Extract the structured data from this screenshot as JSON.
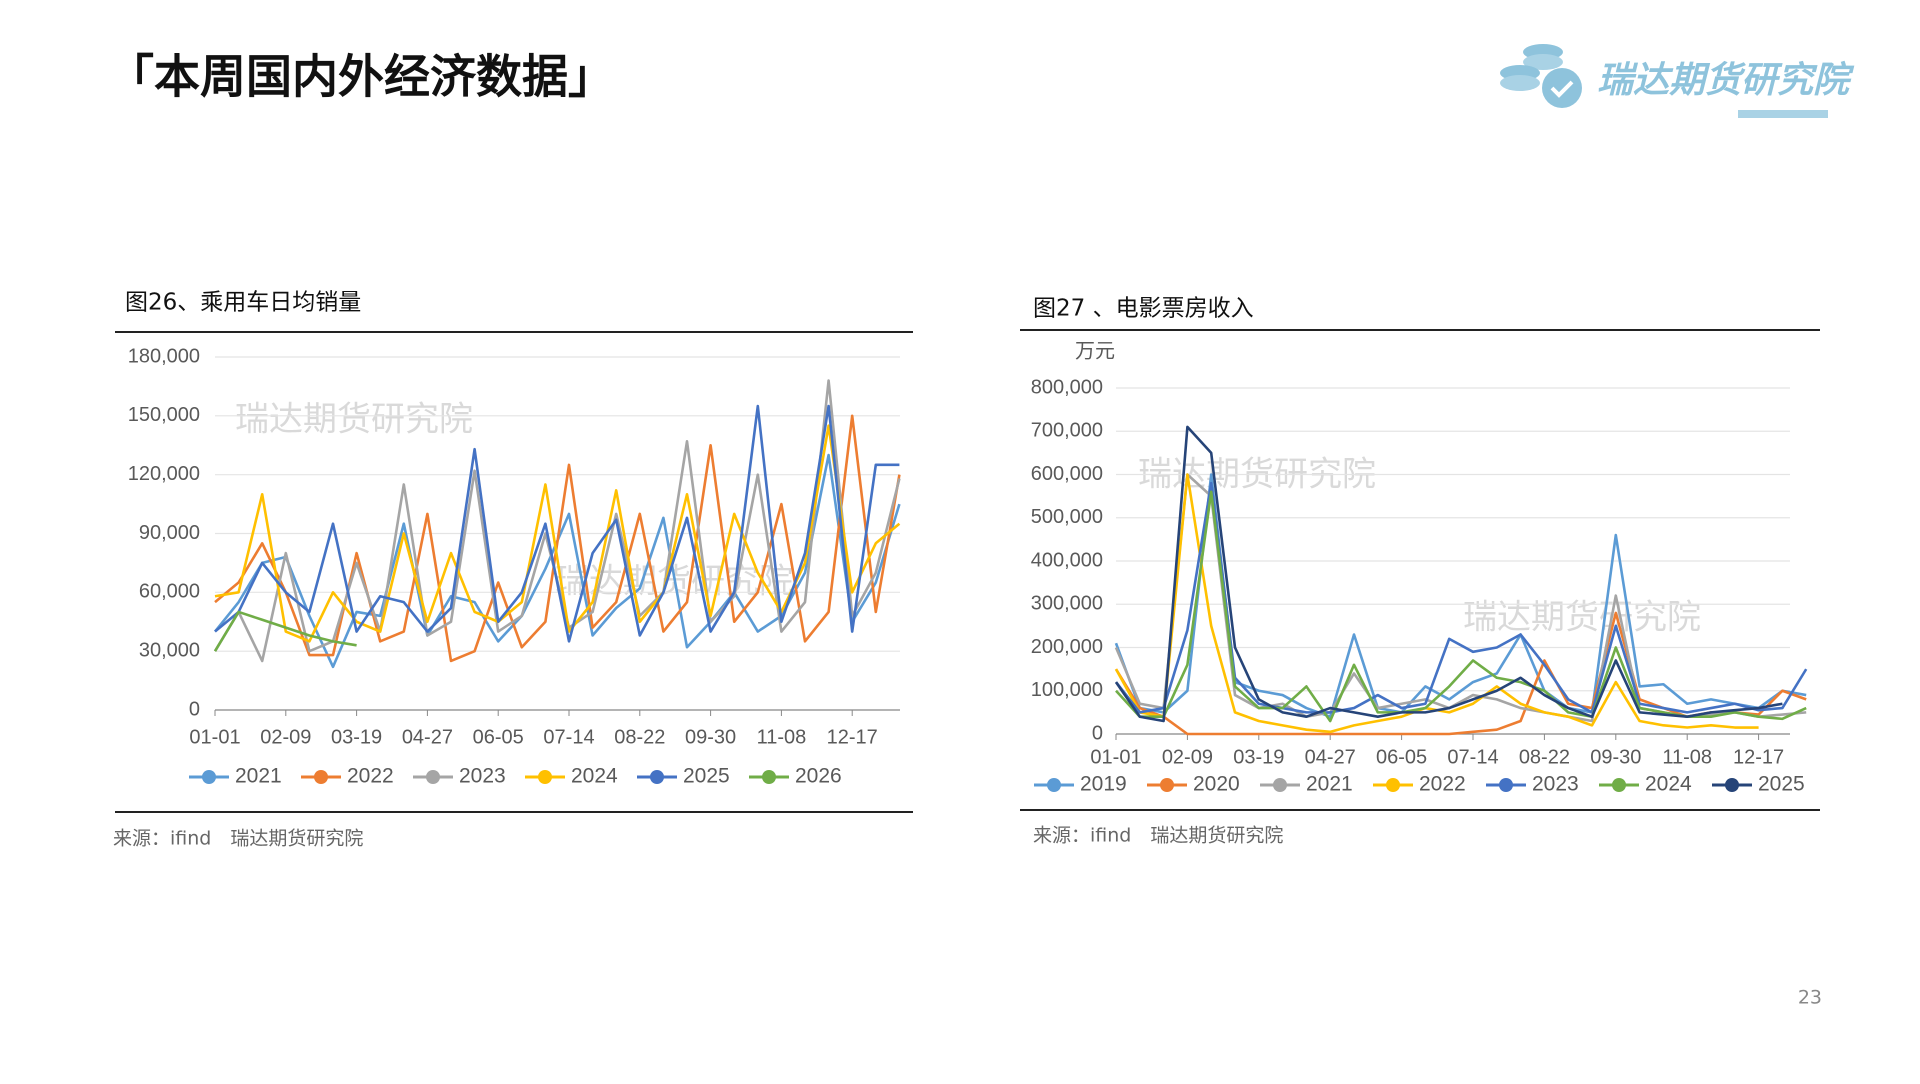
{
  "header": {
    "title": "「本周国内外经济数据」",
    "logo": "瑞达期货研究院"
  },
  "chart_data": [
    {
      "type": "line",
      "title": "图26、乘用车日均销量",
      "watermarks": [
        "瑞达期货研究院",
        "瑞达期货研究院"
      ],
      "categories": [
        "01-01",
        null,
        null,
        "02-09",
        null,
        null,
        "03-19",
        null,
        null,
        "04-27",
        null,
        null,
        "06-05",
        null,
        null,
        "07-14",
        null,
        null,
        "08-22",
        null,
        null,
        "09-30",
        null,
        null,
        "11-08",
        null,
        null,
        "12-17",
        null,
        null
      ],
      "ylim": [
        0,
        180000
      ],
      "yticks": [
        0,
        {
          "value": 30000,
          "label": "30,000"
        },
        {
          "value": 60000,
          "label": "60,000"
        },
        {
          "value": 90000,
          "label": "90,000"
        },
        {
          "value": 120000,
          "label": "120,000"
        },
        {
          "value": 150000,
          "label": "150,000"
        },
        {
          "value": 180000,
          "label": "180,000"
        }
      ],
      "grid": true,
      "legend": "bottom",
      "series": [
        {
          "name": "2021",
          "color": "#5b9bd5",
          "values": [
            40000,
            55000,
            75000,
            78000,
            48000,
            22000,
            50000,
            48000,
            95000,
            38000,
            58000,
            55000,
            35000,
            48000,
            72000,
            100000,
            38000,
            52000,
            62000,
            98000,
            32000,
            45000,
            60000,
            40000,
            48000,
            70000,
            130000,
            45000,
            65000,
            105000
          ]
        },
        {
          "name": "2022",
          "color": "#ed7d31",
          "values": [
            55000,
            65000,
            85000,
            60000,
            28000,
            28000,
            80000,
            35000,
            40000,
            100000,
            25000,
            30000,
            65000,
            32000,
            45000,
            125000,
            42000,
            55000,
            100000,
            40000,
            55000,
            135000,
            45000,
            60000,
            105000,
            35000,
            50000,
            150000,
            50000,
            120000
          ]
        },
        {
          "name": "2023",
          "color": "#a5a5a5",
          "values": [
            30000,
            50000,
            25000,
            80000,
            30000,
            35000,
            75000,
            40000,
            115000,
            38000,
            45000,
            122000,
            40000,
            48000,
            90000,
            42000,
            50000,
            100000,
            48000,
            60000,
            137000,
            45000,
            58000,
            120000,
            40000,
            55000,
            168000,
            48000,
            70000,
            118000
          ]
        },
        {
          "name": "2024",
          "color": "#ffc000",
          "values": [
            58000,
            60000,
            110000,
            40000,
            35000,
            60000,
            45000,
            40000,
            90000,
            45000,
            80000,
            50000,
            45000,
            55000,
            115000,
            40000,
            55000,
            112000,
            45000,
            60000,
            110000,
            48000,
            100000,
            70000,
            50000,
            75000,
            145000,
            60000,
            85000,
            95000
          ]
        },
        {
          "name": "2025",
          "color": "#4472c4",
          "values": [
            40000,
            50000,
            75000,
            60000,
            50000,
            95000,
            40000,
            58000,
            55000,
            40000,
            52000,
            133000,
            45000,
            60000,
            95000,
            35000,
            80000,
            97000,
            38000,
            60000,
            98000,
            40000,
            60000,
            155000,
            45000,
            80000,
            155000,
            40000,
            125000,
            125000
          ]
        },
        {
          "name": "2026",
          "color": "#70ad47",
          "values": [
            30000,
            50000,
            46000,
            42000,
            38000,
            35000,
            33000,
            null,
            null,
            null,
            null,
            null,
            null,
            null,
            null,
            null,
            null,
            null,
            null,
            null,
            null,
            null,
            null,
            null,
            null,
            null,
            null,
            null,
            null,
            null
          ]
        }
      ]
    },
    {
      "type": "line",
      "title": "图27 、电影票房收入",
      "y_label": "万元",
      "watermarks": [
        "瑞达期货研究院",
        "瑞达期货研究院"
      ],
      "categories": [
        "01-01",
        null,
        null,
        "02-09",
        null,
        null,
        "03-19",
        null,
        null,
        "04-27",
        null,
        null,
        "06-05",
        null,
        null,
        "07-14",
        null,
        null,
        "08-22",
        null,
        null,
        "09-30",
        null,
        null,
        "11-08",
        null,
        null,
        "12-17",
        null,
        null
      ],
      "ylim": [
        0,
        800000
      ],
      "yticks": [
        0,
        {
          "value": 100000,
          "label": "100,000"
        },
        {
          "value": 200000,
          "label": "200,000"
        },
        {
          "value": 300000,
          "label": "300,000"
        },
        {
          "value": 400000,
          "label": "400,000"
        },
        {
          "value": 500000,
          "label": "500,000"
        },
        {
          "value": 600000,
          "label": "600,000"
        },
        {
          "value": 700000,
          "label": "700,000"
        },
        {
          "value": 800000,
          "label": "800,000"
        }
      ],
      "grid": true,
      "legend": "bottom",
      "series": [
        {
          "name": "2019",
          "color": "#5b9bd5",
          "values": [
            210000,
            60000,
            50000,
            100000,
            600000,
            120000,
            100000,
            90000,
            60000,
            40000,
            230000,
            60000,
            50000,
            110000,
            80000,
            120000,
            140000,
            230000,
            100000,
            60000,
            50000,
            460000,
            110000,
            115000,
            70000,
            80000,
            70000,
            60000,
            100000,
            90000
          ]
        },
        {
          "name": "2020",
          "color": "#ed7d31",
          "values": [
            150000,
            60000,
            40000,
            0,
            0,
            0,
            0,
            0,
            0,
            0,
            0,
            0,
            0,
            0,
            0,
            5000,
            10000,
            30000,
            170000,
            70000,
            60000,
            280000,
            80000,
            60000,
            40000,
            50000,
            50000,
            45000,
            100000,
            80000
          ]
        },
        {
          "name": "2021",
          "color": "#a5a5a5",
          "values": [
            200000,
            70000,
            60000,
            600000,
            550000,
            90000,
            60000,
            70000,
            40000,
            50000,
            140000,
            60000,
            70000,
            80000,
            60000,
            90000,
            80000,
            60000,
            50000,
            40000,
            30000,
            320000,
            60000,
            50000,
            40000,
            45000,
            50000,
            40000,
            45000,
            50000
          ]
        },
        {
          "name": "2022",
          "color": "#ffc000",
          "values": [
            150000,
            50000,
            40000,
            600000,
            250000,
            50000,
            30000,
            20000,
            10000,
            5000,
            20000,
            30000,
            40000,
            60000,
            50000,
            70000,
            110000,
            70000,
            50000,
            40000,
            20000,
            120000,
            30000,
            20000,
            15000,
            20000,
            15000,
            15000,
            null,
            null
          ]
        },
        {
          "name": "2023",
          "color": "#4472c4",
          "values": [
            120000,
            50000,
            60000,
            240000,
            580000,
            130000,
            70000,
            60000,
            50000,
            50000,
            60000,
            90000,
            60000,
            70000,
            220000,
            190000,
            200000,
            230000,
            160000,
            80000,
            50000,
            250000,
            70000,
            60000,
            50000,
            60000,
            70000,
            55000,
            60000,
            150000
          ]
        },
        {
          "name": "2024",
          "color": "#70ad47",
          "values": [
            100000,
            40000,
            40000,
            160000,
            560000,
            110000,
            60000,
            60000,
            110000,
            30000,
            160000,
            50000,
            50000,
            60000,
            110000,
            170000,
            130000,
            120000,
            100000,
            50000,
            40000,
            200000,
            60000,
            50000,
            40000,
            40000,
            50000,
            40000,
            35000,
            60000
          ]
        },
        {
          "name": "2025",
          "color": "#264478",
          "values": [
            120000,
            40000,
            30000,
            710000,
            650000,
            200000,
            80000,
            50000,
            40000,
            60000,
            50000,
            40000,
            50000,
            50000,
            60000,
            80000,
            100000,
            130000,
            90000,
            60000,
            40000,
            170000,
            50000,
            45000,
            40000,
            50000,
            55000,
            60000,
            70000,
            null
          ]
        }
      ]
    }
  ],
  "sources": [
    "来源：ifind　瑞达期货研究院",
    "来源：ifind　瑞达期货研究院"
  ],
  "page_number": "23"
}
